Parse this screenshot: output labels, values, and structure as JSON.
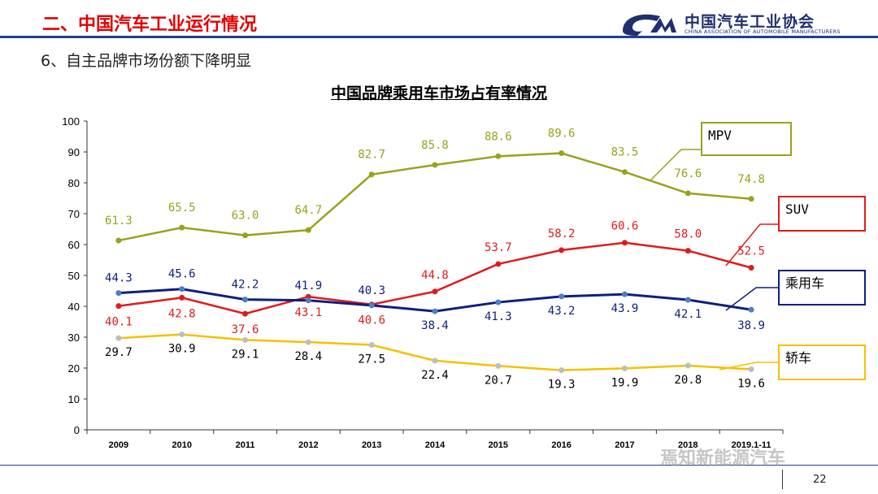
{
  "header": {
    "section_title": "二、中国汽车工业运行情况",
    "logo_cn": "中国汽车工业协会",
    "logo_en": "CHINA ASSOCIATION OF AUTOMOBILE MANUFACTURERS"
  },
  "subtitle": "6、自主品牌市场份额下降明显",
  "footer": {
    "page_number": "22",
    "watermark": "焉知新能源汽车"
  },
  "colors": {
    "mpv": "#9aa11c",
    "suv": "#e01b1b",
    "passenger": "#0f1f7c",
    "sedan": "#f5c000",
    "header_red": "#e00000",
    "header_blue": "#1f3f8f"
  },
  "chart_data": {
    "type": "line",
    "title": "中国品牌乘用车市场占有率情况",
    "categories": [
      "2009",
      "2010",
      "2011",
      "2012",
      "2013",
      "2014",
      "2015",
      "2016",
      "2017",
      "2018",
      "2019.1-11"
    ],
    "ylim": [
      0,
      100
    ],
    "yticks": [
      0,
      10,
      20,
      30,
      40,
      50,
      60,
      70,
      80,
      90,
      100
    ],
    "grid": false,
    "series": [
      {
        "name": "MPV",
        "values": [
          61.3,
          65.5,
          63.0,
          64.7,
          82.7,
          85.8,
          88.6,
          89.6,
          83.5,
          76.6,
          74.8
        ],
        "labels": [
          "61.3",
          "65.5",
          "63.0",
          "64.7",
          "82.7",
          "85.8",
          "88.6",
          "89.6",
          "83.5",
          "76.6",
          "74.8"
        ]
      },
      {
        "name": "SUV",
        "values": [
          40.1,
          42.8,
          37.6,
          43.1,
          40.6,
          44.8,
          53.7,
          58.2,
          60.6,
          58.0,
          52.5
        ],
        "labels": [
          "40.1",
          "42.8",
          "37.6",
          "43.1",
          "40.6",
          "44.8",
          "53.7",
          "58.2",
          "60.6",
          "58.0",
          "52.5"
        ]
      },
      {
        "name": "乘用车",
        "values": [
          44.3,
          45.6,
          42.2,
          41.9,
          40.3,
          38.4,
          41.3,
          43.2,
          43.9,
          42.1,
          38.9
        ],
        "labels": [
          "44.3",
          "45.6",
          "42.2",
          "41.9",
          "40.3",
          "38.4",
          "41.3",
          "43.2",
          "43.9",
          "42.1",
          "38.9"
        ]
      },
      {
        "name": "轿车",
        "values": [
          29.7,
          30.9,
          29.1,
          28.4,
          27.5,
          22.4,
          20.7,
          19.3,
          19.9,
          20.8,
          19.6
        ],
        "labels": [
          "29.7",
          "30.9",
          "29.1",
          "28.4",
          "27.5",
          "22.4",
          "20.7",
          "19.3",
          "19.9",
          "20.8",
          "19.6"
        ]
      }
    ]
  }
}
